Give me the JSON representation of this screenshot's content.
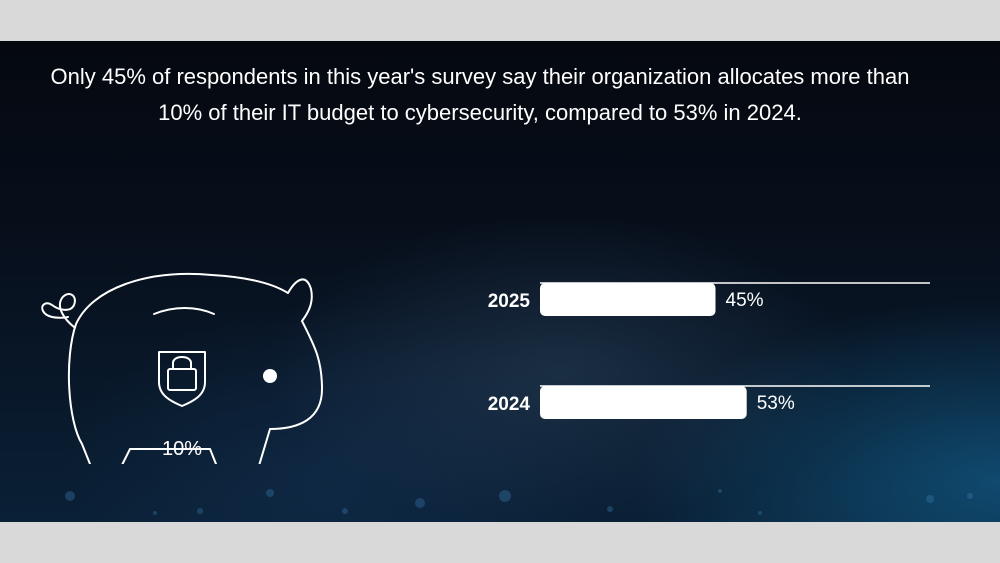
{
  "headline": "Only 45% of respondents in this year's survey say their organization allocates more than 10% of their IT budget to cybersecurity, compared to 53% in 2024.",
  "piggy_bank": {
    "label": "10%"
  },
  "chart_data": {
    "type": "bar",
    "orientation": "horizontal",
    "categories": [
      "2025",
      "2024"
    ],
    "values": [
      45,
      53
    ],
    "value_labels": [
      "45%",
      "53%"
    ],
    "xlim": [
      0,
      100
    ],
    "title": "",
    "xlabel": "",
    "ylabel": ""
  },
  "colors": {
    "background": "#05080f",
    "bar": "#ffffff",
    "text": "#ffffff"
  }
}
